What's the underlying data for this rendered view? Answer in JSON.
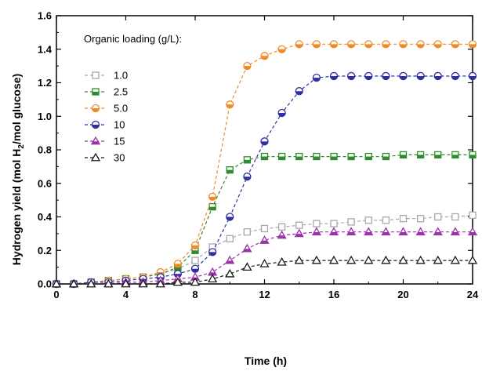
{
  "chart_data": {
    "type": "line",
    "xlabel": "Time (h)",
    "ylabel_parts": [
      "Hydrogen yield (mol H",
      "2",
      "/mol glucose)"
    ],
    "xlim": [
      0,
      24
    ],
    "ylim": [
      0,
      1.6
    ],
    "xticks": [
      0,
      4,
      8,
      12,
      16,
      20,
      24
    ],
    "xtick_labels": [
      "0",
      "4",
      "8",
      "12",
      "16",
      "20",
      "24"
    ],
    "yticks": [
      0,
      0.2,
      0.4,
      0.6,
      0.8,
      1.0,
      1.2,
      1.4,
      1.6
    ],
    "ytick_labels": [
      "0.0",
      "0.2",
      "0.4",
      "0.6",
      "0.8",
      "1.0",
      "1.2",
      "1.4",
      "1.6"
    ],
    "grid": false,
    "legend_title": "Organic loading (g/L):",
    "legend_position": "top-left",
    "x": [
      0,
      1,
      2,
      3,
      4,
      5,
      6,
      7,
      8,
      9,
      10,
      11,
      12,
      13,
      14,
      15,
      16,
      17,
      18,
      19,
      20,
      21,
      22,
      23,
      24
    ],
    "series": [
      {
        "name": "1.0",
        "marker": "square-open",
        "color": "#a8a8a8",
        "values": [
          0.0,
          0.0,
          0.01,
          0.02,
          0.03,
          0.04,
          0.06,
          0.09,
          0.14,
          0.22,
          0.27,
          0.31,
          0.33,
          0.34,
          0.35,
          0.36,
          0.36,
          0.37,
          0.38,
          0.38,
          0.39,
          0.39,
          0.4,
          0.4,
          0.41
        ]
      },
      {
        "name": "2.5",
        "marker": "square-half",
        "color": "#2e8b2e",
        "values": [
          0.0,
          0.0,
          0.01,
          0.02,
          0.03,
          0.04,
          0.06,
          0.1,
          0.2,
          0.46,
          0.68,
          0.74,
          0.76,
          0.76,
          0.76,
          0.76,
          0.76,
          0.76,
          0.76,
          0.76,
          0.77,
          0.77,
          0.77,
          0.77,
          0.77
        ]
      },
      {
        "name": "5.0",
        "marker": "circle-half",
        "color": "#f08a24",
        "values": [
          0.0,
          0.0,
          0.01,
          0.02,
          0.03,
          0.04,
          0.07,
          0.12,
          0.23,
          0.52,
          1.07,
          1.3,
          1.36,
          1.4,
          1.43,
          1.43,
          1.43,
          1.43,
          1.43,
          1.43,
          1.43,
          1.43,
          1.43,
          1.43,
          1.43
        ]
      },
      {
        "name": "10",
        "marker": "circle-half",
        "color": "#2f2fa0",
        "values": [
          0.0,
          0.0,
          0.01,
          0.01,
          0.02,
          0.03,
          0.04,
          0.06,
          0.09,
          0.19,
          0.4,
          0.64,
          0.85,
          1.02,
          1.15,
          1.23,
          1.24,
          1.24,
          1.24,
          1.24,
          1.24,
          1.24,
          1.24,
          1.24,
          1.24
        ]
      },
      {
        "name": "15",
        "marker": "triangle-half",
        "color": "#9a32a8",
        "values": [
          0.0,
          0.0,
          0.0,
          0.0,
          0.01,
          0.01,
          0.02,
          0.03,
          0.04,
          0.07,
          0.14,
          0.21,
          0.26,
          0.29,
          0.3,
          0.31,
          0.31,
          0.31,
          0.31,
          0.31,
          0.31,
          0.31,
          0.31,
          0.31,
          0.31
        ]
      },
      {
        "name": "30",
        "marker": "triangle-open",
        "color": "#1a1a1a",
        "values": [
          0.0,
          0.0,
          0.0,
          0.0,
          0.0,
          0.0,
          0.0,
          0.01,
          0.01,
          0.03,
          0.06,
          0.1,
          0.12,
          0.13,
          0.14,
          0.14,
          0.14,
          0.14,
          0.14,
          0.14,
          0.14,
          0.14,
          0.14,
          0.14,
          0.14
        ]
      }
    ]
  }
}
